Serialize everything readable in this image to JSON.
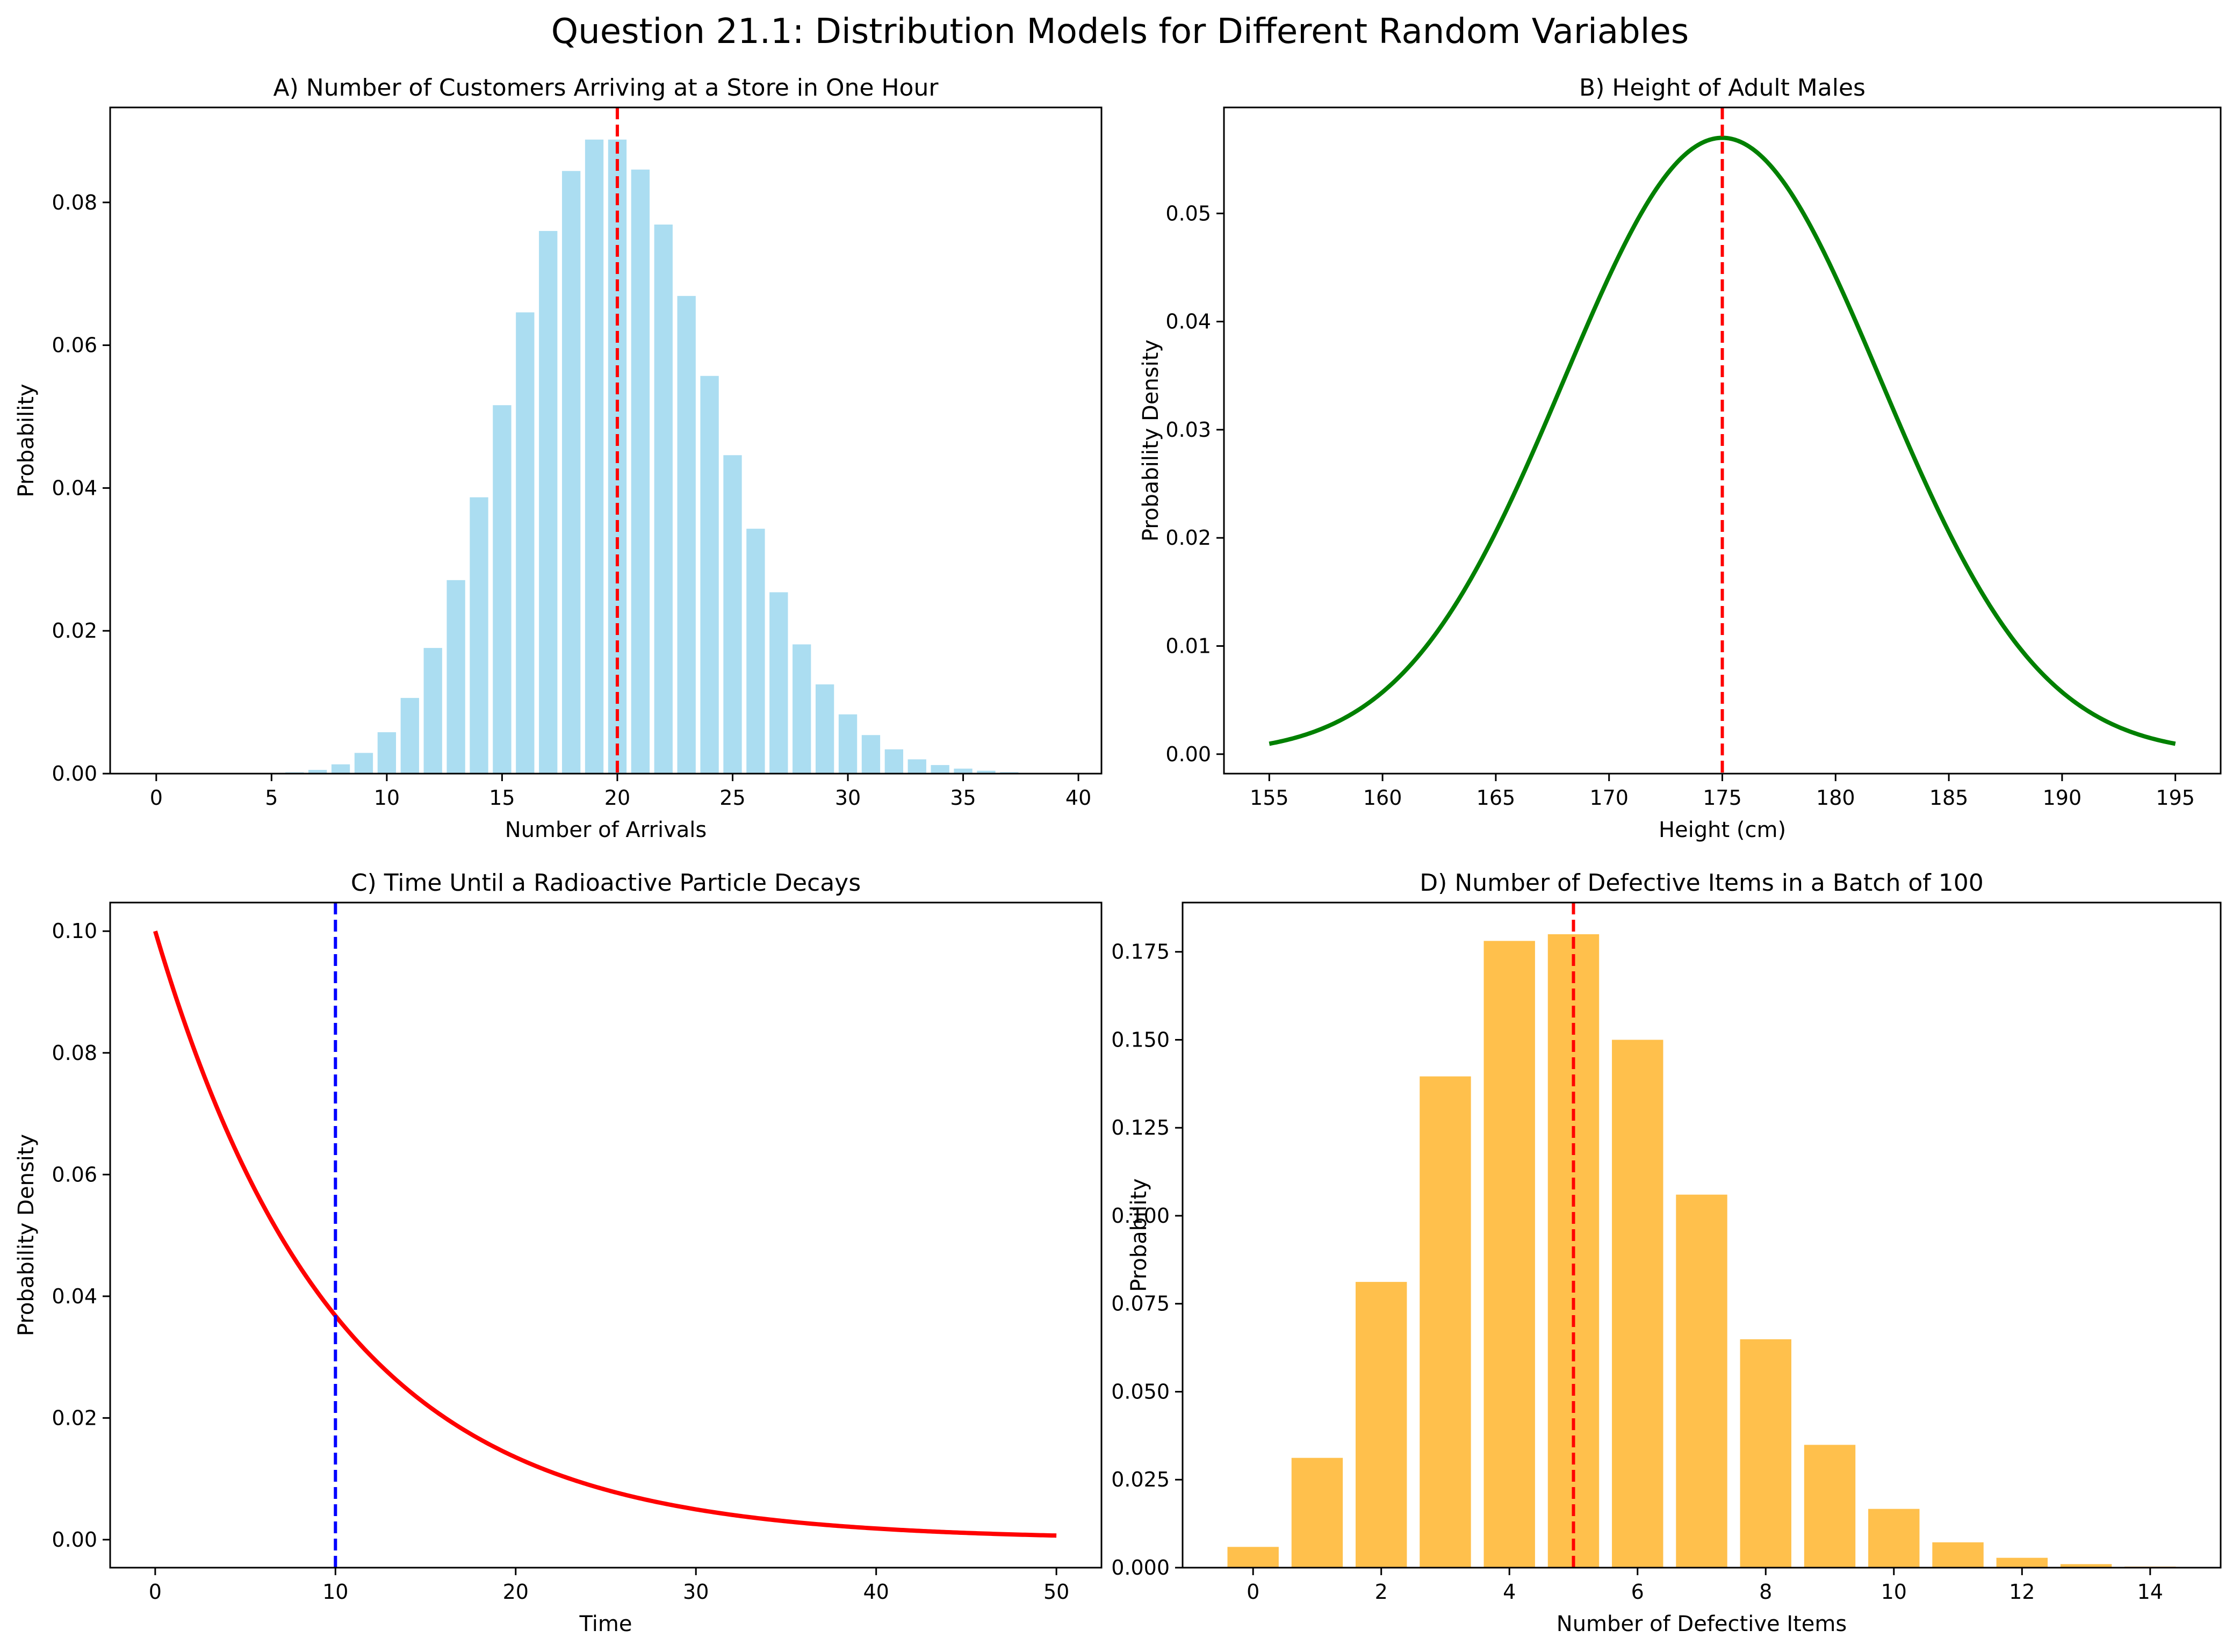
{
  "suptitle": "Question 21.1: Distribution Models for Different Random Variables",
  "colors": {
    "poisson_bar": "#87ceeb",
    "normal_line": "#008000",
    "exponential_line": "#ff0000",
    "binomial_bar": "#ffa500",
    "mean_line_red": "#ff0000",
    "mean_line_blue": "#0000ff"
  },
  "chart_data": [
    {
      "id": "A",
      "type": "bar",
      "title": "A) Number of Customers Arriving at a Store in One Hour",
      "xlabel": "Number of Arrivals",
      "ylabel": "Probability",
      "xlim": [
        -2,
        41
      ],
      "ylim": [
        0,
        0.0933
      ],
      "xticks": [
        0,
        5,
        10,
        15,
        20,
        25,
        30,
        35,
        40
      ],
      "yticks": [
        0.0,
        0.02,
        0.04,
        0.06,
        0.08
      ],
      "ytick_decimals": 2,
      "mean_line": 20,
      "mean_line_color": "#ff0000",
      "categories": [
        0,
        1,
        2,
        3,
        4,
        5,
        6,
        7,
        8,
        9,
        10,
        11,
        12,
        13,
        14,
        15,
        16,
        17,
        18,
        19,
        20,
        21,
        22,
        23,
        24,
        25,
        26,
        27,
        28,
        29,
        30,
        31,
        32,
        33,
        34,
        35,
        36,
        37,
        38,
        39,
        40
      ],
      "values": [
        0.0,
        0.0,
        0.0,
        0.0,
        0.0,
        5e-05,
        0.00018,
        0.00052,
        0.0013,
        0.0029,
        0.0058,
        0.0106,
        0.0176,
        0.0271,
        0.0387,
        0.0516,
        0.0646,
        0.076,
        0.0844,
        0.0888,
        0.0888,
        0.0846,
        0.0769,
        0.0669,
        0.0557,
        0.0446,
        0.0343,
        0.0254,
        0.0181,
        0.0125,
        0.0083,
        0.0054,
        0.0034,
        0.002,
        0.0012,
        0.0007,
        0.0004,
        0.0002,
        0.0001,
        6e-05,
        3e-05
      ]
    },
    {
      "id": "B",
      "type": "line",
      "title": "B) Height of Adult Males",
      "xlabel": "Height (cm)",
      "ylabel": "Probability Density",
      "distribution": {
        "kind": "normal",
        "mean": 175,
        "sd": 7
      },
      "x_range": [
        155,
        195
      ],
      "xlim": [
        153,
        197
      ],
      "ylim": [
        -0.0018,
        0.0598
      ],
      "xticks": [
        155,
        160,
        165,
        170,
        175,
        180,
        185,
        190,
        195
      ],
      "yticks": [
        0.0,
        0.01,
        0.02,
        0.03,
        0.04,
        0.05
      ],
      "ytick_decimals": 2,
      "mean_line": 175,
      "mean_line_color": "#ff0000",
      "line_color": "#008000"
    },
    {
      "id": "C",
      "type": "line",
      "title": "C) Time Until a Radioactive Particle Decays",
      "xlabel": "Time",
      "ylabel": "Probability Density",
      "distribution": {
        "kind": "exponential",
        "rate": 0.1
      },
      "x_range": [
        0,
        50
      ],
      "xlim": [
        -2.5,
        52.5
      ],
      "ylim": [
        -0.0046,
        0.1047
      ],
      "xticks": [
        0,
        10,
        20,
        30,
        40,
        50
      ],
      "yticks": [
        0.0,
        0.02,
        0.04,
        0.06,
        0.08,
        0.1
      ],
      "ytick_decimals": 2,
      "mean_line": 10,
      "mean_line_color": "#0000ff",
      "line_color": "#ff0000"
    },
    {
      "id": "D",
      "type": "bar",
      "title": "D) Number of Defective Items in a Batch of 100",
      "xlabel": "Number of Defective Items",
      "ylabel": "Probability",
      "xlim": [
        -1.1,
        15.1
      ],
      "ylim": [
        0,
        0.189
      ],
      "xticks": [
        0,
        2,
        4,
        6,
        8,
        10,
        12,
        14
      ],
      "yticks": [
        0.0,
        0.025,
        0.05,
        0.075,
        0.1,
        0.125,
        0.15,
        0.175
      ],
      "ytick_decimals": 3,
      "mean_line": 5,
      "mean_line_color": "#ff0000",
      "categories": [
        0,
        1,
        2,
        3,
        4,
        5,
        6,
        7,
        8,
        9,
        10,
        11,
        12,
        13,
        14
      ],
      "values": [
        0.0059,
        0.0312,
        0.0812,
        0.1396,
        0.1781,
        0.18,
        0.15,
        0.106,
        0.0649,
        0.0349,
        0.0167,
        0.0072,
        0.0028,
        0.001,
        0.0003
      ]
    }
  ]
}
